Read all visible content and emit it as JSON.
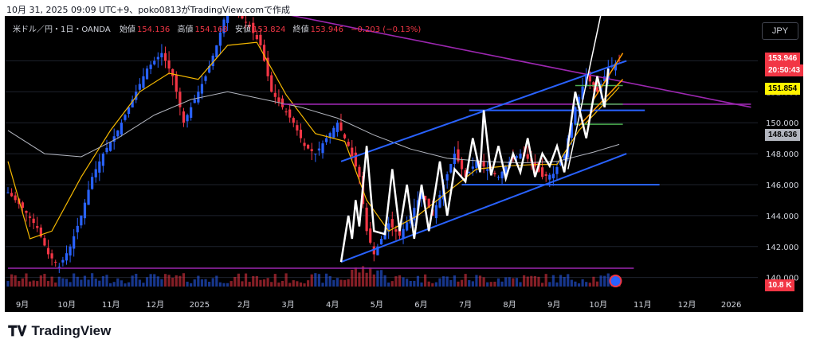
{
  "header": {
    "caption": "10月 31, 2025 09:09 UTC+9、poko0813がTradingView.comで作成"
  },
  "legend": {
    "title": "米ドル／円・1日・OANDA",
    "open_label": "始値",
    "open": "154.136",
    "high_label": "高値",
    "high": "154.168",
    "low_label": "安値",
    "low": "153.824",
    "close_label": "終値",
    "close": "153.946",
    "change": "−0.203 (−0.13%)"
  },
  "currency_button": "JPY",
  "badges": {
    "last_price": "153.946",
    "countdown": "20:50:43",
    "level_yellow": "151.854",
    "level_gray": "148.636",
    "volume": "10.8 K"
  },
  "footer": {
    "logo_icon": "tradingview-logo-icon",
    "brand": "TradingView"
  },
  "colors": {
    "background": "#000000",
    "up": "#2962ff",
    "down": "#f23645",
    "ma_short": "#f5b800",
    "ma_long": "#b2b5be",
    "channel": "#2962ff",
    "purple": "#9c27b0",
    "zigzag": "#ffffff",
    "green": "#4caf50",
    "orange": "#ff9800",
    "yellow_badge": "#fff200",
    "last_badge": "#f23645"
  },
  "chart_data": {
    "type": "candlestick",
    "symbol": "USD/JPY",
    "timeframe": "1D",
    "price_axis": {
      "ticks": [
        "140.000",
        "142.000",
        "144.000",
        "146.000",
        "148.000",
        "150.000",
        "152.000",
        "154.000"
      ],
      "range": [
        138.8,
        156.9
      ]
    },
    "time_axis": {
      "ticks": [
        "9月",
        "10月",
        "11月",
        "12月",
        "2025",
        "2月",
        "3月",
        "4月",
        "5月",
        "6月",
        "7月",
        "8月",
        "9月",
        "10月",
        "11月",
        "12月",
        "2026"
      ]
    },
    "price_path": [
      [
        0,
        145.5
      ],
      [
        4,
        144.5
      ],
      [
        8,
        143.2
      ],
      [
        11,
        141.5
      ],
      [
        14,
        140.7
      ],
      [
        17,
        142.0
      ],
      [
        20,
        144.0
      ],
      [
        23,
        146.5
      ],
      [
        26,
        148.0
      ],
      [
        30,
        149.5
      ],
      [
        34,
        151.5
      ],
      [
        38,
        153.5
      ],
      [
        42,
        154.5
      ],
      [
        45,
        153.0
      ],
      [
        48,
        150.0
      ],
      [
        51,
        151.5
      ],
      [
        54,
        153.0
      ],
      [
        57,
        155.0
      ],
      [
        60,
        157.5
      ],
      [
        63,
        157.0
      ],
      [
        66,
        156.2
      ],
      [
        69,
        155.0
      ],
      [
        72,
        152.0
      ],
      [
        75,
        151.0
      ],
      [
        78,
        150.0
      ],
      [
        81,
        148.5
      ],
      [
        84,
        148.0
      ],
      [
        87,
        149.0
      ],
      [
        90,
        150.0
      ],
      [
        93,
        148.5
      ],
      [
        96,
        146.5
      ],
      [
        98,
        143.0
      ],
      [
        100,
        141.5
      ],
      [
        102,
        142.5
      ],
      [
        104,
        143.5
      ],
      [
        107,
        142.7
      ],
      [
        110,
        144.0
      ],
      [
        113,
        145.5
      ],
      [
        116,
        144.0
      ],
      [
        119,
        146.0
      ],
      [
        122,
        148.0
      ],
      [
        125,
        146.5
      ],
      [
        128,
        147.5
      ],
      [
        131,
        147.0
      ],
      [
        134,
        146.5
      ],
      [
        137,
        147.5
      ],
      [
        140,
        148.0
      ],
      [
        143,
        147.5
      ],
      [
        146,
        146.5
      ],
      [
        149,
        146.7
      ],
      [
        152,
        148.0
      ],
      [
        155,
        151.0
      ],
      [
        158,
        153.0
      ],
      [
        161,
        152.0
      ],
      [
        164,
        153.5
      ],
      [
        167,
        154.0
      ]
    ],
    "moving_averages": [
      {
        "name": "short",
        "points": [
          [
            0,
            147.5
          ],
          [
            6,
            142.5
          ],
          [
            12,
            143.0
          ],
          [
            20,
            146.5
          ],
          [
            28,
            149.5
          ],
          [
            36,
            152.0
          ],
          [
            44,
            153.2
          ],
          [
            52,
            152.8
          ],
          [
            60,
            155.0
          ],
          [
            68,
            155.2
          ],
          [
            76,
            151.8
          ],
          [
            84,
            149.3
          ],
          [
            92,
            148.8
          ],
          [
            98,
            145.0
          ],
          [
            104,
            143.0
          ],
          [
            112,
            144.0
          ],
          [
            120,
            145.5
          ],
          [
            128,
            147.0
          ],
          [
            136,
            147.2
          ],
          [
            144,
            147.3
          ],
          [
            150,
            147.3
          ],
          [
            156,
            149.5
          ],
          [
            162,
            151.0
          ],
          [
            167,
            152.3
          ]
        ]
      },
      {
        "name": "long",
        "points": [
          [
            0,
            149.5
          ],
          [
            10,
            148.0
          ],
          [
            20,
            147.8
          ],
          [
            30,
            149.0
          ],
          [
            40,
            150.5
          ],
          [
            50,
            151.5
          ],
          [
            60,
            152.0
          ],
          [
            70,
            151.5
          ],
          [
            80,
            151.0
          ],
          [
            90,
            150.3
          ],
          [
            100,
            149.2
          ],
          [
            110,
            148.3
          ],
          [
            120,
            147.7
          ],
          [
            130,
            147.5
          ],
          [
            140,
            147.4
          ],
          [
            150,
            147.5
          ],
          [
            160,
            148.1
          ],
          [
            167,
            148.6
          ]
        ]
      }
    ],
    "drawings": {
      "channel_upper": [
        [
          91,
          147.5
        ],
        [
          169,
          154.0
        ]
      ],
      "channel_lower": [
        [
          91,
          141.0
        ],
        [
          169,
          148.0
        ]
      ],
      "purple_diagonal": [
        [
          76,
          157.0
        ],
        [
          203,
          151.0
        ]
      ],
      "purple_horizontal_low": [
        [
          0,
          140.6
        ],
        [
          171,
          140.6
        ]
      ],
      "purple_horizontal_high": [
        [
          75,
          151.2
        ],
        [
          203,
          151.2
        ]
      ],
      "support_line": [
        [
          124,
          146.0
        ],
        [
          178,
          146.0
        ]
      ],
      "resistance_line": [
        [
          126,
          150.8
        ],
        [
          174,
          150.8
        ]
      ],
      "green_levels": [
        152.4,
        151.2,
        149.9
      ],
      "white_zigzag": [
        [
          91,
          141.0
        ],
        [
          93,
          144.0
        ],
        [
          94,
          142.5
        ],
        [
          95,
          145.0
        ],
        [
          96,
          143.3
        ],
        [
          98,
          148.5
        ],
        [
          100,
          143.0
        ],
        [
          103,
          142.8
        ],
        [
          105,
          147.0
        ],
        [
          107,
          143.0
        ],
        [
          109,
          146.0
        ],
        [
          111,
          142.5
        ],
        [
          113,
          146.0
        ],
        [
          115,
          143.0
        ],
        [
          118,
          147.5
        ],
        [
          120,
          144.0
        ],
        [
          122,
          147.0
        ],
        [
          125,
          146.2
        ],
        [
          127,
          149.0
        ],
        [
          129,
          146.8
        ],
        [
          130,
          150.8
        ],
        [
          132,
          146.6
        ],
        [
          134,
          148.5
        ],
        [
          136,
          146.4
        ],
        [
          138,
          148.0
        ],
        [
          140,
          146.8
        ],
        [
          142,
          149.0
        ],
        [
          144,
          146.5
        ],
        [
          146,
          148.0
        ],
        [
          148,
          147.2
        ],
        [
          150,
          148.5
        ],
        [
          152,
          146.8
        ],
        [
          155,
          152.0
        ],
        [
          158,
          149.0
        ],
        [
          161,
          153.0
        ],
        [
          163,
          151.0
        ],
        [
          164,
          153.5
        ]
      ]
    },
    "volume_y_range": [
      0,
      20
    ]
  }
}
